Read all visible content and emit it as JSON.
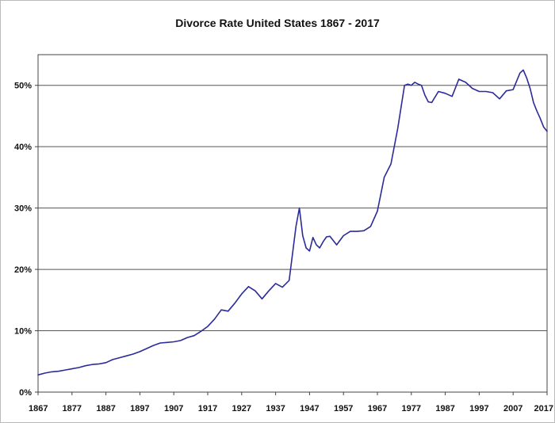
{
  "chart_data": {
    "type": "line",
    "title": "Divorce Rate United States 1867 - 2017",
    "xlabel": "",
    "ylabel": "",
    "xlim": [
      1867,
      2017
    ],
    "ylim": [
      0,
      0.55
    ],
    "grid": "horizontal",
    "legend": "none",
    "line_color": "#2b2b9a",
    "x_ticks": [
      1867,
      1877,
      1887,
      1897,
      1907,
      1917,
      1927,
      1937,
      1947,
      1957,
      1967,
      1977,
      1987,
      1997,
      2007,
      2017
    ],
    "x_tick_labels": [
      "1867",
      "1877",
      "1887",
      "1897",
      "1907",
      "1917",
      "1927",
      "1937",
      "1947",
      "1957",
      "1967",
      "1977",
      "1987",
      "1997",
      "2007",
      "2017"
    ],
    "y_ticks": [
      0,
      0.1,
      0.2,
      0.3,
      0.4,
      0.5
    ],
    "y_tick_labels": [
      "0%",
      "10%",
      "20%",
      "30%",
      "40%",
      "50%"
    ],
    "series": [
      {
        "x": [
          1867,
          1869,
          1871,
          1873,
          1875,
          1877,
          1879,
          1881,
          1883,
          1885,
          1887,
          1889,
          1891,
          1893,
          1895,
          1897,
          1899,
          1901,
          1903,
          1905,
          1907,
          1909,
          1911,
          1913,
          1915,
          1917,
          1919,
          1921,
          1923,
          1925,
          1927,
          1929,
          1931,
          1933,
          1935,
          1937,
          1939,
          1941,
          1943,
          1944,
          1945,
          1946,
          1947,
          1948,
          1949,
          1950,
          1951,
          1952,
          1953,
          1955,
          1957,
          1959,
          1961,
          1963,
          1965,
          1967,
          1969,
          1971,
          1973,
          1975,
          1976,
          1977,
          1978,
          1979,
          1980,
          1981,
          1982,
          1983,
          1985,
          1987,
          1989,
          1991,
          1993,
          1995,
          1997,
          1999,
          2001,
          2003,
          2005,
          2007,
          2009,
          2010,
          2011,
          2012,
          2013,
          2014,
          2015,
          2016,
          2017
        ],
        "values": [
          0.028,
          0.031,
          0.033,
          0.034,
          0.036,
          0.038,
          0.04,
          0.043,
          0.045,
          0.046,
          0.048,
          0.053,
          0.056,
          0.059,
          0.062,
          0.066,
          0.071,
          0.076,
          0.08,
          0.081,
          0.082,
          0.084,
          0.089,
          0.092,
          0.099,
          0.107,
          0.119,
          0.134,
          0.132,
          0.145,
          0.16,
          0.172,
          0.165,
          0.152,
          0.165,
          0.177,
          0.171,
          0.182,
          0.27,
          0.3,
          0.255,
          0.235,
          0.23,
          0.252,
          0.24,
          0.235,
          0.245,
          0.253,
          0.254,
          0.24,
          0.255,
          0.262,
          0.262,
          0.263,
          0.27,
          0.295,
          0.35,
          0.372,
          0.43,
          0.5,
          0.502,
          0.5,
          0.505,
          0.502,
          0.5,
          0.484,
          0.473,
          0.472,
          0.49,
          0.487,
          0.482,
          0.51,
          0.505,
          0.495,
          0.49,
          0.49,
          0.488,
          0.478,
          0.491,
          0.493,
          0.52,
          0.525,
          0.512,
          0.495,
          0.472,
          0.458,
          0.446,
          0.432,
          0.425
        ]
      }
    ]
  }
}
